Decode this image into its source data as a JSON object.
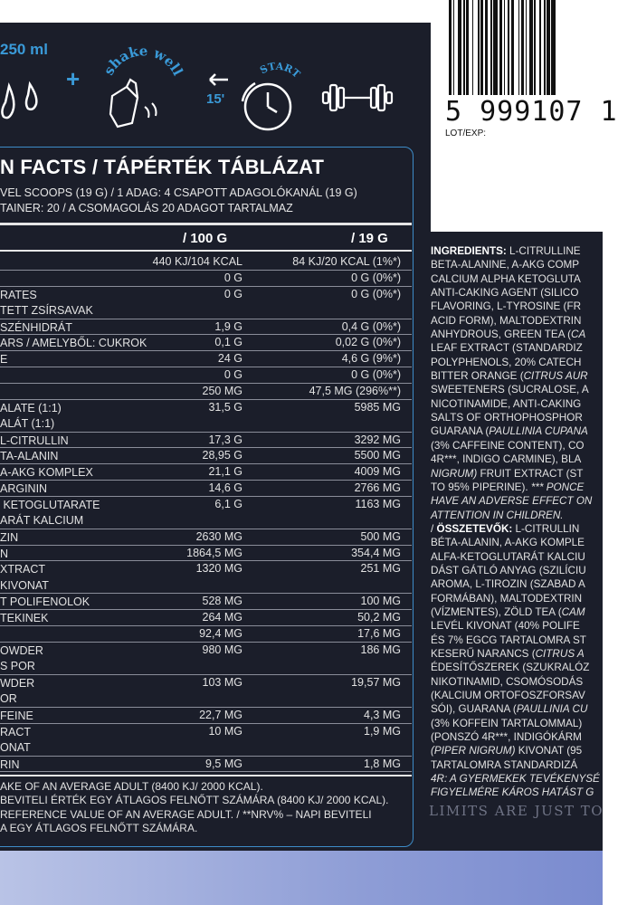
{
  "icons": {
    "amount": "250 ml",
    "plus": "+",
    "shake": "shake well",
    "minutes": "15'",
    "start": "START"
  },
  "barcode": {
    "number": "5 999107 1",
    "lot": "LOT/EXP:"
  },
  "facts": {
    "title": "N FACTS / TÁPÉRTÉK TÁBLÁZAT",
    "serving_line1": "VEL SCOOPS (19 G) / 1 ADAG: 4 CSAPOTT ADAGOLÓKANÁL (19 G)",
    "serving_line2": "TAINER: 20 / A CSOMAGOLÁS 20 ADAGOT TARTALMAZ",
    "col_100g": "/ 100 G",
    "col_19g": "/ 19 G",
    "rows": [
      {
        "name": "",
        "per100": "440 KJ/104 KCAL",
        "per19": "84 KJ/20 KCAL (1%*)"
      },
      {
        "name": "",
        "per100": "0 G",
        "per19": "0 G (0%*)"
      },
      {
        "name": "RATES\nTETT ZSÍRSAVAK",
        "per100": "0 G",
        "per19": "0 G (0%*)"
      },
      {
        "name": "SZÉNHIDRÁT",
        "per100": "1,9 G",
        "per19": "0,4 G (0%*)"
      },
      {
        "name": "ARS / AMELYBŐL: CUKROK",
        "per100": "0,1 G",
        "per19": "0,02 G (0%*)"
      },
      {
        "name": "E",
        "per100": "24 G",
        "per19": "4,6 G (9%*)"
      },
      {
        "name": "",
        "per100": "0 G",
        "per19": "0 G (0%*)"
      },
      {
        "name": "",
        "per100": "250 MG",
        "per19": "47,5 MG (296%**)"
      },
      {
        "name": "ALATE (1:1)\nALÁT (1:1)",
        "per100": "31,5 G",
        "per19": "5985 MG"
      },
      {
        "name": "L-CITRULLIN",
        "per100": "17,3 G",
        "per19": "3292 MG"
      },
      {
        "name": "TA-ALANIN",
        "per100": "28,95 G",
        "per19": "5500 MG"
      },
      {
        "name": "A-AKG KOMPLEX",
        "per100": "21,1 G",
        "per19": "4009 MG"
      },
      {
        "name": "ARGININ",
        "per100": "14,6 G",
        "per19": "2766 MG"
      },
      {
        "name": " KETOGLUTARATE\nARÁT KALCIUM",
        "per100": "6,1 G",
        "per19": "1163 MG"
      },
      {
        "name": "ZIN",
        "per100": "2630 MG",
        "per19": "500 MG"
      },
      {
        "name": "N",
        "per100": "1864,5 MG",
        "per19": "354,4 MG"
      },
      {
        "name": "XTRACT\nKIVONAT",
        "per100": "1320 MG",
        "per19": "251 MG"
      },
      {
        "name": "T POLIFENOLOK",
        "per100": "528 MG",
        "per19": "100 MG"
      },
      {
        "name": "TEKINEK",
        "per100": "264 MG",
        "per19": "50,2 MG"
      },
      {
        "name": "",
        "per100": "92,4 MG",
        "per19": "17,6 MG"
      },
      {
        "name": "OWDER\nS POR",
        "per100": "980 MG",
        "per19": "186 MG"
      },
      {
        "name": "WDER\nOR",
        "per100": "103 MG",
        "per19": "19,57 MG"
      },
      {
        "name": "FEINE",
        "per100": "22,7 MG",
        "per19": "4,3 MG"
      },
      {
        "name": "RACT\nONAT",
        "per100": "10 MG",
        "per19": "1,9 MG"
      },
      {
        "name": "RIN",
        "per100": "9,5 MG",
        "per19": "1,8 MG"
      }
    ],
    "footnote1": "AKE OF AN AVERAGE ADULT (8400 KJ/ 2000 KCAL).",
    "footnote2": "BEVITELI ÉRTÉK EGY ÁTLAGOS FELNŐTT SZÁMÁRA (8400 KJ/ 2000 KCAL).",
    "footnote3": "REFERENCE VALUE OF AN AVERAGE ADULT. / **NRV% – NAPI BEVITELI",
    "footnote4": "A EGY ÁTLAGOS FELNŐTT SZÁMÁRA."
  },
  "ingredients": {
    "lines": [
      {
        "b": "INGREDIENTS:",
        "t": " L-CITRULLINE"
      },
      {
        "t": "BETA-ALANINE, A-AKG COMP"
      },
      {
        "t": "CALCIUM ALPHA KETOGLUTA"
      },
      {
        "t": "ANTI-CAKING AGENT (SILICO"
      },
      {
        "t": "FLAVORING, L-TYROSINE (FR"
      },
      {
        "t": "ACID FORM), MALTODEXTRIN"
      },
      {
        "t": "ANHYDROUS, GREEN TEA (",
        "i": "CA"
      },
      {
        "t": "LEAF EXTRACT (STANDARDIZ"
      },
      {
        "t": "POLYPHENOLS, 20% CATECH"
      },
      {
        "t": "BITTER ORANGE (",
        "i": "CITRUS AUR"
      },
      {
        "t": "SWEETENERS (SUCRALOSE, A"
      },
      {
        "t": "NICOTINAMIDE, ANTI-CAKING"
      },
      {
        "t": "SALTS OF ORTHOPHOSPHOR"
      },
      {
        "t": "GUARANA (",
        "i": "PAULLINIA CUPANA"
      },
      {
        "t": "(3% CAFFEINE CONTENT), CO"
      },
      {
        "t": "4R***, INDIGO CARMINE), BLA"
      },
      {
        "i": "NIGRUM)",
        "t2": " FRUIT EXTRACT (ST"
      },
      {
        "t": "TO 95% PIPERINE). ",
        "i": "*** PONCE"
      },
      {
        "i": "HAVE AN ADVERSE EFFECT ON"
      },
      {
        "i": "ATTENTION IN CHILDREN."
      },
      {
        "t": "/ ",
        "b": "ÖSSZETEVŐK:",
        "t2": " L-CITRULLIN"
      },
      {
        "t": "BÉTA-ALANIN, A-AKG KOMPLE"
      },
      {
        "t": "ALFA-KETOGLUTARÁT KALCIU"
      },
      {
        "t": "DÁST GÁTLÓ ANYAG (SZILÍCIU"
      },
      {
        "t": "AROMA, L-TIROZIN (SZABAD A"
      },
      {
        "t": "FORMÁBAN), MALTODEXTRIN"
      },
      {
        "t": "(VÍZMENTES), ZÖLD TEA (",
        "i": "CAM"
      },
      {
        "t": "LEVÉL KIVONAT (40% POLIFE"
      },
      {
        "t": "ÉS 7% EGCG TARTALOMRA ST"
      },
      {
        "t": "KESERŰ NARANCS (",
        "i": "CITRUS A"
      },
      {
        "t": "ÉDESÍTŐSZEREK (SZUKRALÓZ"
      },
      {
        "t": "NIKOTINAMID, CSOMÓSODÁS"
      },
      {
        "t": "(KALCIUM ORTOFOSZFORSAV"
      },
      {
        "t": "SÓI), GUARANA (",
        "i": "PAULLINIA CU"
      },
      {
        "t": "(3% KOFFEIN TARTALOMMAL)"
      },
      {
        "t": "(PONSZÓ 4R***, INDIGÓKÁRM"
      },
      {
        "i": "(PIPER NIGRUM)",
        "t2": " KIVONAT (95"
      },
      {
        "t": "TARTALOMRA STANDARDIZÁ"
      },
      {
        "i": "4R: A GYERMEKEK TEVÉKENYSÉ"
      },
      {
        "i": "FIGYELMÉRE KÁROS HATÁST G"
      }
    ]
  },
  "slogan": "LIMITS ARE JUST TO",
  "colors": {
    "panel_bg": "#1b1e2a",
    "accent": "#3a9ad8",
    "band": "#8e9dd6"
  }
}
